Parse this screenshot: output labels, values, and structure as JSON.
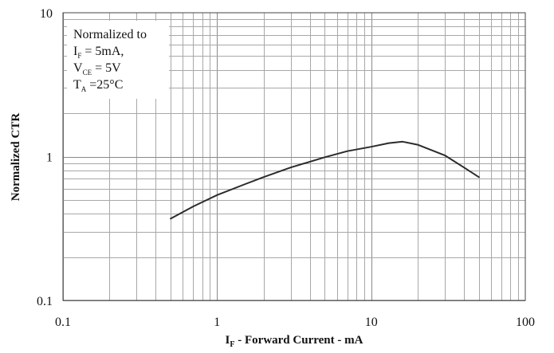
{
  "chart_data": {
    "type": "line",
    "title": "",
    "xlabel": "I",
    "xlabel_sub": "F",
    "xlabel_rest": " - Forward Current - mA",
    "ylabel": "Normalized CTR",
    "x_scale": "log",
    "y_scale": "log",
    "xlim": [
      0.1,
      100
    ],
    "ylim": [
      0.1,
      10
    ],
    "x_ticks": [
      0.1,
      1,
      10,
      100
    ],
    "x_tick_labels": [
      "0.1",
      "1",
      "10",
      "100"
    ],
    "y_ticks": [
      0.1,
      1,
      10
    ],
    "y_tick_labels": [
      "0.1",
      "1",
      "10"
    ],
    "grid": true,
    "annotation": {
      "lines": [
        {
          "main": "Normalized to",
          "sub": "",
          "rest": ""
        },
        {
          "main": "I",
          "sub": "F",
          "rest": " = 5mA,"
        },
        {
          "main": "V",
          "sub": "CE",
          "rest": " = 5V"
        },
        {
          "main": " T",
          "sub": "A",
          "rest": " =25°C"
        }
      ]
    },
    "series": [
      {
        "x": [
          0.5,
          0.7,
          1.0,
          1.5,
          2.0,
          3.0,
          5.0,
          7.0,
          10.0,
          13.0,
          16.0,
          20.0,
          30.0,
          40.0,
          50.0
        ],
        "y": [
          0.37,
          0.45,
          0.54,
          0.64,
          0.72,
          0.84,
          0.99,
          1.09,
          1.17,
          1.24,
          1.27,
          1.21,
          1.02,
          0.84,
          0.72
        ]
      }
    ]
  }
}
